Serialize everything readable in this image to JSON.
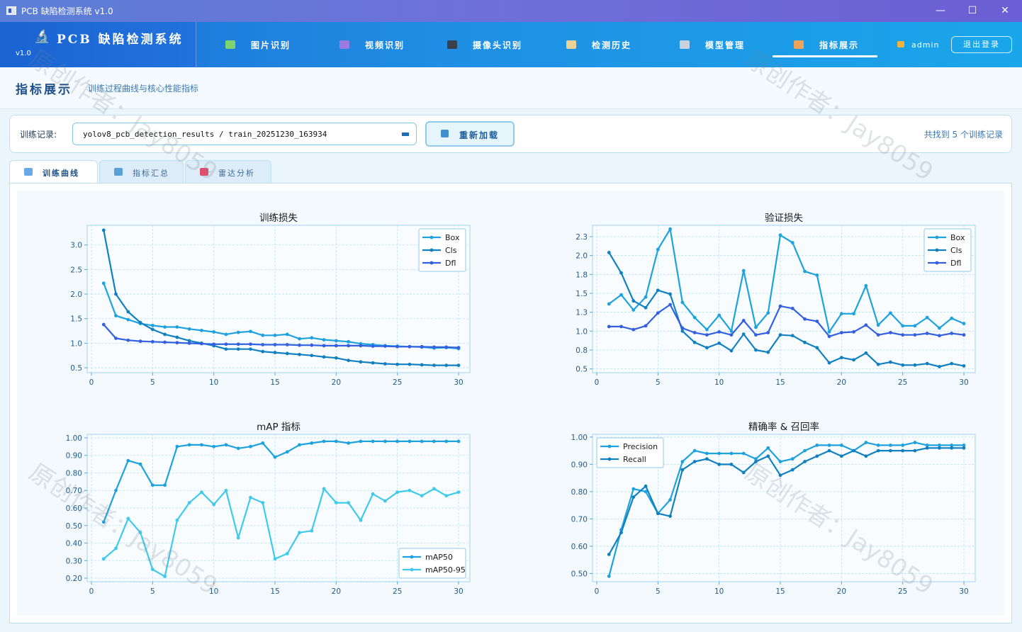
{
  "window": {
    "title": "PCB 缺陷检测系统 v1.0",
    "minimize": "—",
    "maximize": "☐",
    "close": "✕"
  },
  "brand": {
    "logo_icon": "microscope-icon",
    "title": "PCB 缺陷检测系统",
    "version": "v1.0"
  },
  "nav": [
    {
      "label": "图片识别",
      "icon": "image-icon",
      "color": "#7ed36e"
    },
    {
      "label": "视频识别",
      "icon": "film-icon",
      "color": "#9b7be0"
    },
    {
      "label": "摄像头识别",
      "icon": "camera-icon",
      "color": "#39404c"
    },
    {
      "label": "检测历史",
      "icon": "clipboard-icon",
      "color": "#e9d39a"
    },
    {
      "label": "模型管理",
      "icon": "gear-icon",
      "color": "#c9d3e0"
    },
    {
      "label": "指标展示",
      "icon": "bar-chart-icon",
      "color": "#f0a35a",
      "active": true
    }
  ],
  "user": {
    "name": "admin",
    "icon": "user-icon"
  },
  "logout_label": "退出登录",
  "page": {
    "title": "指标展示",
    "subtitle": "训练过程曲线与核心性能指标"
  },
  "records": {
    "label": "训练记录:",
    "selected": "yolov8_pcb_detection_results / train_20251230_163934",
    "reload_label": "重新加载",
    "count_text": "共找到 5 个训练记录"
  },
  "tabs": [
    {
      "label": "训练曲线",
      "icon": "line-chart-icon",
      "color": "#6aa8e8",
      "active": true
    },
    {
      "label": "指标汇总",
      "icon": "bar-chart-icon",
      "color": "#5aa0d8"
    },
    {
      "label": "雷达分析",
      "icon": "target-icon",
      "color": "#e0506a"
    }
  ],
  "watermarks": [
    "原创作者：Jay8059",
    "原创作者：Jay8059",
    "原创作者：Jay8059",
    "原创作者：Jay8059"
  ],
  "chart_data": [
    {
      "type": "line",
      "title": "训练损失",
      "xlabel": "",
      "ylabel": "",
      "xlim": [
        0,
        30
      ],
      "ylim": [
        0.4,
        3.4
      ],
      "xticks": [
        0,
        5,
        10,
        15,
        20,
        25,
        30
      ],
      "yticks": [
        0.5,
        1.0,
        1.5,
        2.0,
        2.5,
        3.0
      ],
      "grid": true,
      "legend": "top-right",
      "x": [
        1,
        2,
        3,
        4,
        5,
        6,
        7,
        8,
        9,
        10,
        11,
        12,
        13,
        14,
        15,
        16,
        17,
        18,
        19,
        20,
        21,
        22,
        23,
        24,
        25,
        26,
        27,
        28,
        29,
        30
      ],
      "series": [
        {
          "name": "Box",
          "color": "#1ea2de",
          "values": [
            2.22,
            1.56,
            1.48,
            1.4,
            1.36,
            1.33,
            1.33,
            1.29,
            1.26,
            1.23,
            1.18,
            1.22,
            1.24,
            1.16,
            1.16,
            1.18,
            1.09,
            1.11,
            1.07,
            1.05,
            1.03,
            0.99,
            0.97,
            0.95,
            0.94,
            0.93,
            0.92,
            0.9,
            0.91,
            0.89
          ]
        },
        {
          "name": "Cls",
          "color": "#1180c0",
          "values": [
            3.3,
            2.0,
            1.64,
            1.42,
            1.28,
            1.18,
            1.12,
            1.05,
            1.0,
            0.95,
            0.88,
            0.88,
            0.88,
            0.83,
            0.81,
            0.79,
            0.77,
            0.75,
            0.72,
            0.7,
            0.65,
            0.62,
            0.6,
            0.58,
            0.57,
            0.57,
            0.56,
            0.55,
            0.55,
            0.55
          ]
        },
        {
          "name": "Dfl",
          "color": "#3460e0",
          "values": [
            1.38,
            1.1,
            1.06,
            1.04,
            1.03,
            1.02,
            1.01,
            1.0,
            0.99,
            0.98,
            0.98,
            0.98,
            0.98,
            0.97,
            0.97,
            0.97,
            0.96,
            0.96,
            0.95,
            0.95,
            0.95,
            0.95,
            0.94,
            0.94,
            0.93,
            0.93,
            0.93,
            0.92,
            0.92,
            0.91
          ]
        }
      ]
    },
    {
      "type": "line",
      "title": "验证损失",
      "xlabel": "",
      "ylabel": "",
      "xlim": [
        0,
        30
      ],
      "ylim": [
        0.45,
        2.4
      ],
      "xticks": [
        0,
        5,
        10,
        15,
        20,
        25,
        30
      ],
      "yticks": [
        0.5,
        0.75,
        1.0,
        1.25,
        1.5,
        1.75,
        2.0,
        2.25
      ],
      "grid": true,
      "legend": "top-right",
      "x": [
        1,
        2,
        3,
        4,
        5,
        6,
        7,
        8,
        9,
        10,
        11,
        12,
        13,
        14,
        15,
        16,
        17,
        18,
        19,
        20,
        21,
        22,
        23,
        24,
        25,
        26,
        27,
        28,
        29,
        30
      ],
      "series": [
        {
          "name": "Box",
          "color": "#1ea2de",
          "values": [
            1.36,
            1.48,
            1.28,
            1.45,
            2.08,
            2.35,
            1.38,
            1.18,
            1.02,
            1.21,
            1.0,
            1.8,
            1.05,
            1.24,
            2.27,
            2.17,
            1.79,
            1.74,
            0.99,
            1.23,
            1.23,
            1.6,
            1.08,
            1.24,
            1.07,
            1.07,
            1.18,
            1.04,
            1.17,
            1.1
          ]
        },
        {
          "name": "Cls",
          "color": "#1180c0",
          "values": [
            2.04,
            1.77,
            1.4,
            1.31,
            1.54,
            1.49,
            1.0,
            0.85,
            0.78,
            0.84,
            0.74,
            0.96,
            0.75,
            0.72,
            0.95,
            0.94,
            0.85,
            0.78,
            0.58,
            0.65,
            0.62,
            0.71,
            0.56,
            0.59,
            0.55,
            0.55,
            0.57,
            0.53,
            0.57,
            0.54
          ]
        },
        {
          "name": "Dfl",
          "color": "#3460e0",
          "values": [
            1.06,
            1.06,
            1.02,
            1.07,
            1.24,
            1.35,
            1.04,
            0.98,
            0.95,
            0.99,
            0.95,
            1.14,
            0.95,
            0.98,
            1.33,
            1.3,
            1.16,
            1.13,
            0.93,
            0.98,
            0.99,
            1.08,
            0.95,
            0.98,
            0.95,
            0.95,
            0.97,
            0.94,
            0.97,
            0.95
          ]
        }
      ]
    },
    {
      "type": "line",
      "title": "mAP 指标",
      "xlabel": "",
      "ylabel": "",
      "xlim": [
        0,
        30
      ],
      "ylim": [
        0.18,
        1.02
      ],
      "xticks": [
        0,
        5,
        10,
        15,
        20,
        25,
        30
      ],
      "yticks": [
        0.2,
        0.3,
        0.4,
        0.5,
        0.6,
        0.7,
        0.8,
        0.9,
        1.0
      ],
      "grid": true,
      "legend": "bottom-right",
      "x": [
        1,
        2,
        3,
        4,
        5,
        6,
        7,
        8,
        9,
        10,
        11,
        12,
        13,
        14,
        15,
        16,
        17,
        18,
        19,
        20,
        21,
        22,
        23,
        24,
        25,
        26,
        27,
        28,
        29,
        30
      ],
      "series": [
        {
          "name": "mAP50",
          "color": "#1ea2de",
          "values": [
            0.52,
            0.7,
            0.87,
            0.85,
            0.73,
            0.73,
            0.95,
            0.96,
            0.96,
            0.95,
            0.96,
            0.94,
            0.95,
            0.97,
            0.89,
            0.92,
            0.96,
            0.97,
            0.98,
            0.98,
            0.97,
            0.98,
            0.98,
            0.98,
            0.98,
            0.98,
            0.98,
            0.98,
            0.98,
            0.98
          ]
        },
        {
          "name": "mAP50-95",
          "color": "#3fcaec",
          "values": [
            0.31,
            0.37,
            0.54,
            0.46,
            0.25,
            0.21,
            0.53,
            0.63,
            0.69,
            0.62,
            0.7,
            0.43,
            0.66,
            0.63,
            0.31,
            0.34,
            0.46,
            0.47,
            0.71,
            0.63,
            0.63,
            0.53,
            0.68,
            0.64,
            0.69,
            0.7,
            0.67,
            0.71,
            0.67,
            0.69
          ]
        }
      ]
    },
    {
      "type": "line",
      "title": "精确率 & 召回率",
      "xlabel": "",
      "ylabel": "",
      "xlim": [
        0,
        30
      ],
      "ylim": [
        0.47,
        1.01
      ],
      "xticks": [
        0,
        5,
        10,
        15,
        20,
        25,
        30
      ],
      "yticks": [
        0.5,
        0.6,
        0.7,
        0.8,
        0.9,
        1.0
      ],
      "grid": true,
      "legend": "top-left",
      "x": [
        1,
        2,
        3,
        4,
        5,
        6,
        7,
        8,
        9,
        10,
        11,
        12,
        13,
        14,
        15,
        16,
        17,
        18,
        19,
        20,
        21,
        22,
        23,
        24,
        25,
        26,
        27,
        28,
        29,
        30
      ],
      "series": [
        {
          "name": "Precision",
          "color": "#1ea2de",
          "values": [
            0.49,
            0.66,
            0.81,
            0.8,
            0.72,
            0.77,
            0.91,
            0.95,
            0.94,
            0.94,
            0.94,
            0.94,
            0.92,
            0.96,
            0.91,
            0.92,
            0.95,
            0.97,
            0.97,
            0.97,
            0.95,
            0.98,
            0.97,
            0.97,
            0.97,
            0.98,
            0.97,
            0.97,
            0.97,
            0.97
          ]
        },
        {
          "name": "Recall",
          "color": "#1180c0",
          "values": [
            0.57,
            0.65,
            0.78,
            0.82,
            0.72,
            0.71,
            0.88,
            0.91,
            0.92,
            0.9,
            0.9,
            0.87,
            0.91,
            0.93,
            0.86,
            0.88,
            0.91,
            0.93,
            0.95,
            0.93,
            0.95,
            0.93,
            0.95,
            0.95,
            0.95,
            0.95,
            0.96,
            0.96,
            0.96,
            0.96
          ]
        }
      ]
    }
  ]
}
